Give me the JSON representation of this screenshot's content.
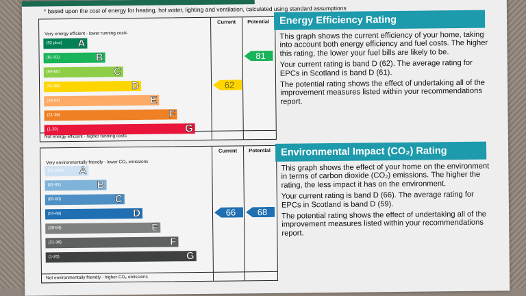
{
  "note": "* based upon the cost of energy for heating, hot water, lighting and ventilation, calculated using standard assumptions",
  "energy_chart": {
    "col_current": "Current",
    "col_potential": "Potential",
    "top_caption": "Very energy efficient - lower running costs",
    "bottom_caption": "Not energy efficient - higher running costs",
    "bands": [
      {
        "range": "(92 plus)",
        "letter": "A",
        "color": "#008054"
      },
      {
        "range": "(81-91)",
        "letter": "B",
        "color": "#19b459"
      },
      {
        "range": "(69-80)",
        "letter": "C",
        "color": "#8dce46"
      },
      {
        "range": "(55-68)",
        "letter": "D",
        "color": "#ffd500"
      },
      {
        "range": "(39-54)",
        "letter": "E",
        "color": "#fcaa65"
      },
      {
        "range": "(21-38)",
        "letter": "F",
        "color": "#ef8023"
      },
      {
        "range": "(1-20)",
        "letter": "G",
        "color": "#e9153b"
      }
    ],
    "current": {
      "value": "62",
      "band": "D",
      "color": "#ffd500"
    },
    "potential": {
      "value": "81",
      "band": "B",
      "color": "#19b459"
    }
  },
  "env_chart": {
    "col_current": "Current",
    "col_potential": "Potential",
    "top_caption": "Very environmentally friendly - lower CO₂ emissions",
    "bottom_caption": "Not environmentally friendly - higher CO₂ emissions",
    "bands": [
      {
        "range": "(92 plus)",
        "letter": "A",
        "color": "#cfe2f3"
      },
      {
        "range": "(81-91)",
        "letter": "B",
        "color": "#7fb3d9"
      },
      {
        "range": "(69-80)",
        "letter": "C",
        "color": "#4d8fc4"
      },
      {
        "range": "(55-68)",
        "letter": "D",
        "color": "#1f6fb2"
      },
      {
        "range": "(39-54)",
        "letter": "E",
        "color": "#7f8080"
      },
      {
        "range": "(21-38)",
        "letter": "F",
        "color": "#5f6060"
      },
      {
        "range": "(1-20)",
        "letter": "G",
        "color": "#3f4040"
      }
    ],
    "current": {
      "value": "66",
      "band": "D",
      "color": "#1f6fb2"
    },
    "potential": {
      "value": "68",
      "band": "D",
      "color": "#1f6fb2"
    }
  },
  "energy_panel": {
    "title": "Energy Efficiency Rating",
    "p1": "This graph shows the current efficiency of your home, taking into account both energy efficiency and fuel costs. The higher this rating, the lower your fuel bills are likely to be.",
    "p2": "Your current rating is band D (62). The average rating for EPCs in Scotland is band D (61).",
    "p3": "The potential rating shows the effect of undertaking all of the improvement measures listed within your recommendations report."
  },
  "env_panel": {
    "title": "Environmental Impact (CO₂) Rating",
    "p1": "This graph shows the effect of your home on the environment in terms of carbon dioxide (CO₂) emissions. The higher the rating, the less impact it has on the environment.",
    "p2": "Your current rating is band D (66). The average rating for EPCs in Scotland is band D (59).",
    "p3": "The potential rating shows the effect of undertaking all of the improvement measures listed within your recommendations report."
  }
}
